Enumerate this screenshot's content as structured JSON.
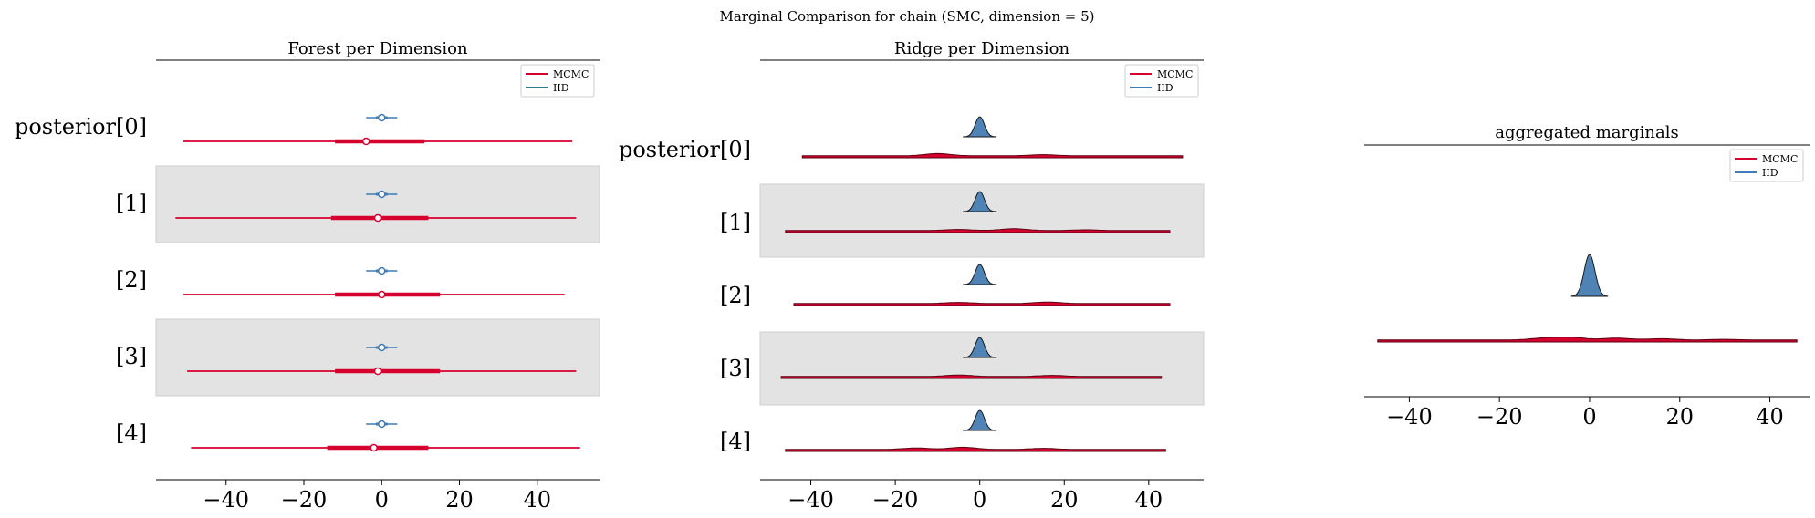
{
  "figure": {
    "suptitle": "Marginal Comparison for chain (SMC, dimension = 5)"
  },
  "colors": {
    "mcmc": "#d6002f",
    "iid": "#3f7bb5",
    "band": "#e3e3e3",
    "ridge_fill": "#4f83b5",
    "ridge_edge": "#1a1a1a"
  },
  "legend_labels": [
    "MCMC",
    "IID"
  ],
  "chart_data": [
    {
      "type": "forest",
      "title": "Forest per Dimension",
      "xlim": [
        -58,
        56
      ],
      "xticks": [
        -40,
        -20,
        0,
        20,
        40
      ],
      "xtick_labels": [
        "−40",
        "−20",
        "0",
        "20",
        "40"
      ],
      "row_labels": [
        "posterior[0]",
        "[1]",
        "[2]",
        "[3]",
        "[4]"
      ],
      "series": [
        {
          "name": "MCMC",
          "rows": [
            {
              "hdi": [
                -51,
                49
              ],
              "iqr": [
                -12,
                11
              ],
              "point": -4
            },
            {
              "hdi": [
                -53,
                50
              ],
              "iqr": [
                -13,
                12
              ],
              "point": -1
            },
            {
              "hdi": [
                -51,
                47
              ],
              "iqr": [
                -12,
                15
              ],
              "point": 0
            },
            {
              "hdi": [
                -50,
                50
              ],
              "iqr": [
                -12,
                15
              ],
              "point": -1
            },
            {
              "hdi": [
                -49,
                51
              ],
              "iqr": [
                -14,
                12
              ],
              "point": -2
            }
          ]
        },
        {
          "name": "IID",
          "rows": [
            {
              "hdi": [
                -4,
                4
              ],
              "iqr": [
                -1.5,
                1.5
              ],
              "point": 0
            },
            {
              "hdi": [
                -4,
                4
              ],
              "iqr": [
                -1.5,
                1.5
              ],
              "point": 0
            },
            {
              "hdi": [
                -4,
                4
              ],
              "iqr": [
                -1.5,
                1.5
              ],
              "point": 0
            },
            {
              "hdi": [
                -4,
                4
              ],
              "iqr": [
                -1.5,
                1.5
              ],
              "point": 0
            },
            {
              "hdi": [
                -4,
                4
              ],
              "iqr": [
                -1.5,
                1.5
              ],
              "point": 0
            }
          ]
        }
      ]
    },
    {
      "type": "ridge",
      "title": "Ridge per Dimension",
      "xlim": [
        -52,
        53
      ],
      "xticks": [
        -40,
        -20,
        0,
        20,
        40
      ],
      "xtick_labels": [
        "−40",
        "−20",
        "0",
        "20",
        "40"
      ],
      "row_labels": [
        "posterior[0]",
        "[1]",
        "[2]",
        "[3]",
        "[4]"
      ],
      "series": [
        {
          "name": "MCMC",
          "rows": [
            {
              "range": [
                -42,
                48
              ],
              "bumps": [
                [
                  -10,
                  0.3
                ],
                [
                  15,
                  0.15
                ]
              ]
            },
            {
              "range": [
                -46,
                45
              ],
              "bumps": [
                [
                  -5,
                  0.15
                ],
                [
                  8,
                  0.25
                ],
                [
                  25,
                  0.1
                ]
              ]
            },
            {
              "range": [
                -44,
                45
              ],
              "bumps": [
                [
                  -5,
                  0.15
                ],
                [
                  16,
                  0.2
                ]
              ]
            },
            {
              "range": [
                -47,
                43
              ],
              "bumps": [
                [
                  -5,
                  0.2
                ],
                [
                  17,
                  0.15
                ]
              ]
            },
            {
              "range": [
                -46,
                44
              ],
              "bumps": [
                [
                  -15,
                  0.2
                ],
                [
                  -4,
                  0.3
                ],
                [
                  15,
                  0.15
                ]
              ]
            }
          ]
        },
        {
          "name": "IID",
          "rows": [
            {
              "range": [
                -4,
                4
              ],
              "peak": 0
            },
            {
              "range": [
                -4,
                4
              ],
              "peak": 0
            },
            {
              "range": [
                -4,
                4
              ],
              "peak": 0
            },
            {
              "range": [
                -4,
                4
              ],
              "peak": 0
            },
            {
              "range": [
                -4,
                4
              ],
              "peak": 0
            }
          ]
        }
      ]
    },
    {
      "type": "area",
      "title": "aggregated marginals",
      "xlim": [
        -50,
        49
      ],
      "xticks": [
        -40,
        -20,
        0,
        20,
        40
      ],
      "xtick_labels": [
        "−40",
        "−20",
        "0",
        "20",
        "40"
      ],
      "series": [
        {
          "name": "MCMC",
          "range": [
            -47,
            46
          ],
          "bumps": [
            [
              -4,
              0.2
            ],
            [
              -10,
              0.15
            ],
            [
              6,
              0.15
            ],
            [
              16,
              0.1
            ],
            [
              30,
              0.05
            ]
          ]
        },
        {
          "name": "IID",
          "range": [
            -4,
            4
          ],
          "peak": 0
        }
      ]
    }
  ]
}
